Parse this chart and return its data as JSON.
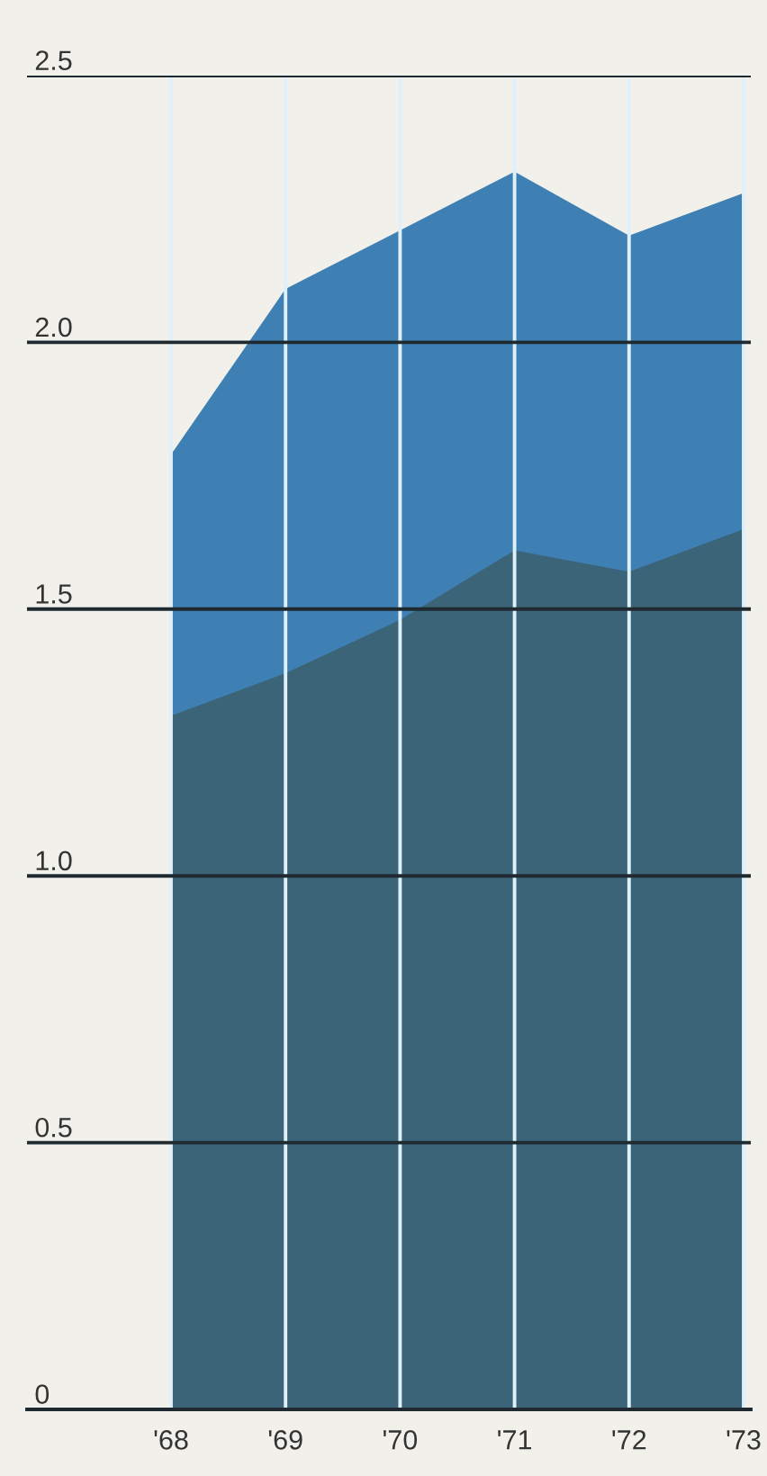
{
  "chart_data": {
    "type": "area",
    "categories": [
      "'68",
      "'69",
      "'70",
      "'71",
      "'72",
      "'73"
    ],
    "series": [
      {
        "color": "#3f80b4",
        "values": [
          1.79,
          2.1,
          2.21,
          2.32,
          2.2,
          2.28
        ]
      },
      {
        "color": "#3b6478",
        "values": [
          1.3,
          1.38,
          1.48,
          1.61,
          1.57,
          1.65
        ]
      }
    ],
    "ylim": [
      0,
      2.5
    ],
    "yticks": [
      0,
      0.5,
      {
        "value": 1,
        "label": "1.0"
      },
      1.5,
      {
        "value": 2,
        "label": "2.0"
      },
      2.5
    ],
    "grid": true
  }
}
